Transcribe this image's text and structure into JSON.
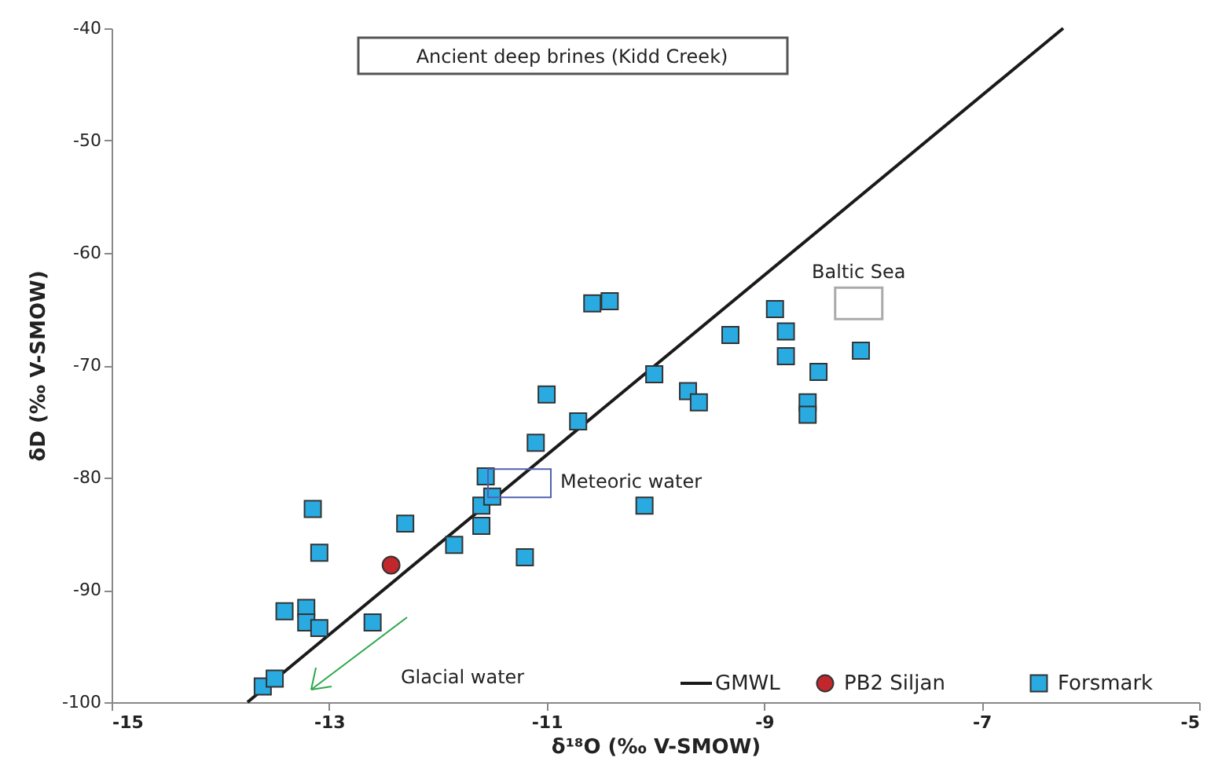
{
  "chart_data": {
    "type": "scatter",
    "xlabel": "δ¹⁸O (‰ V-SMOW)",
    "ylabel": "δD (‰ V-SMOW)",
    "xlim": [
      -15,
      -5
    ],
    "xticks": [
      -15,
      -13,
      -11,
      -9,
      -7,
      -5
    ],
    "ylim": [
      -100,
      -40
    ],
    "yticks": [
      -100,
      -90,
      -80,
      -70,
      -60,
      -50,
      -40
    ],
    "grid": false,
    "legend": "bottom right",
    "series": [
      {
        "name": "GMWL",
        "type": "line",
        "color": "#1a1a1a",
        "marker": "none",
        "line_style": "solid",
        "x": [
          -13.75,
          -6.25
        ],
        "values": [
          -100,
          -40
        ]
      },
      {
        "name": "PB2 Siljan",
        "color": "#c1272d",
        "marker": "circle",
        "x": [
          -12.43
        ],
        "values": [
          -87.8
        ]
      },
      {
        "name": "Forsmark",
        "color": "#29abe2",
        "marker": "square",
        "x": [
          -13.61,
          -13.5,
          -13.41,
          -13.21,
          -13.21,
          -13.09,
          -13.15,
          -13.09,
          -12.6,
          -12.3,
          -11.85,
          -11.6,
          -11.6,
          -11.56,
          -11.5,
          -11.2,
          -11.1,
          -11.0,
          -10.71,
          -10.01,
          -10.1,
          -10.58,
          -10.42,
          -9.7,
          -9.6,
          -9.31,
          -8.9,
          -8.8,
          -8.8,
          -8.6,
          -8.6,
          -8.5,
          -8.11
        ],
        "values": [
          -98.6,
          -97.9,
          -91.9,
          -91.6,
          -92.9,
          -93.4,
          -82.8,
          -86.7,
          -92.9,
          -84.1,
          -86.0,
          -84.3,
          -82.5,
          -79.9,
          -81.7,
          -87.1,
          -76.9,
          -72.6,
          -75.0,
          -70.8,
          -82.5,
          -64.5,
          -64.3,
          -72.3,
          -73.3,
          -67.3,
          -65.0,
          -67.0,
          -69.2,
          -73.3,
          -74.4,
          -70.6,
          -68.7
        ]
      }
    ],
    "annotations": [
      "Ancient deep brines (Kidd Creek)",
      {
        "text": "Meteoric water",
        "x": -11.25,
        "y": -80.5
      },
      {
        "text": "Baltic Sea",
        "x": -8.13,
        "y": -64.5
      },
      "Glacial water"
    ]
  }
}
